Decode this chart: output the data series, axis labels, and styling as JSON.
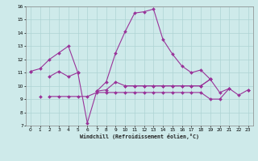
{
  "xlabel": "Windchill (Refroidissement éolien,°C)",
  "bg_color": "#ceeaea",
  "grid_color": "#add4d4",
  "line_color": "#993399",
  "xlim": [
    -0.5,
    23.5
  ],
  "ylim": [
    7,
    16
  ],
  "xticks": [
    0,
    1,
    2,
    3,
    4,
    5,
    6,
    7,
    8,
    9,
    10,
    11,
    12,
    13,
    14,
    15,
    16,
    17,
    18,
    19,
    20,
    21,
    22,
    23
  ],
  "yticks": [
    7,
    8,
    9,
    10,
    11,
    12,
    13,
    14,
    15,
    16
  ],
  "line1_y": [
    11.1,
    11.3,
    12.0,
    12.5,
    13.0,
    11.0,
    7.2,
    9.6,
    10.3,
    12.5,
    14.1,
    15.5,
    15.6,
    15.8,
    13.5,
    12.4,
    11.5,
    11.0,
    11.2,
    10.5,
    null,
    null,
    null,
    null
  ],
  "line2_y": [
    11.1,
    null,
    10.7,
    11.1,
    10.7,
    11.0,
    null,
    null,
    null,
    null,
    10.0,
    10.0,
    10.0,
    10.0,
    10.0,
    10.0,
    10.0,
    10.0,
    10.0,
    10.5,
    null,
    null,
    null,
    null
  ],
  "line3_y": [
    null,
    9.2,
    null,
    null,
    null,
    null,
    null,
    9.6,
    9.7,
    10.3,
    10.0,
    10.0,
    10.0,
    10.0,
    10.0,
    10.0,
    10.0,
    10.0,
    10.0,
    10.5,
    9.5,
    9.8,
    9.3,
    9.7
  ],
  "line4_y": [
    null,
    null,
    9.2,
    9.2,
    9.2,
    9.2,
    9.2,
    9.5,
    9.5,
    9.5,
    9.5,
    9.5,
    9.5,
    9.5,
    9.5,
    9.5,
    9.5,
    9.5,
    9.5,
    9.0,
    9.0,
    9.8,
    null,
    9.7
  ]
}
